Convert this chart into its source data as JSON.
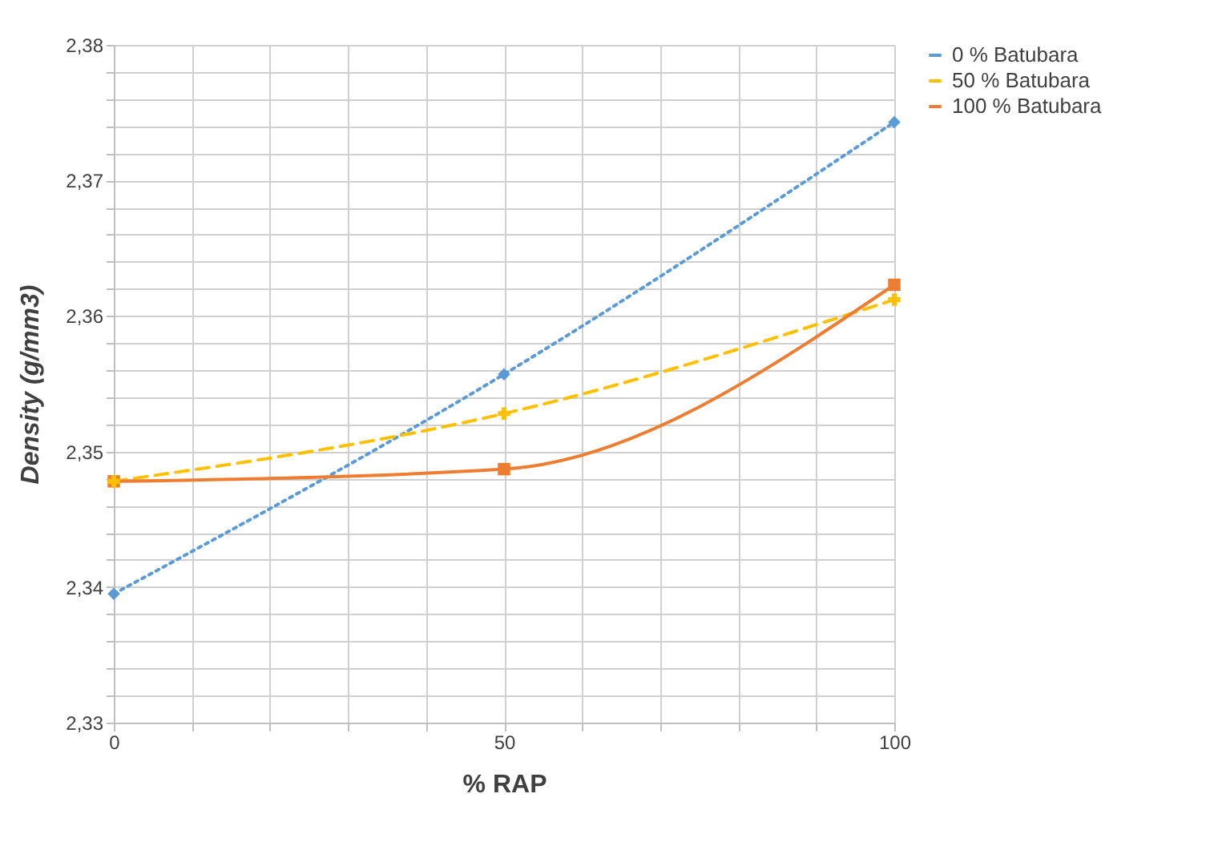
{
  "chart_data": {
    "type": "line",
    "xlabel": "% RAP",
    "ylabel": "Density (g/mm3)",
    "x": [
      0,
      50,
      100
    ],
    "series": [
      {
        "name": "0 % Batubara",
        "color": "#5b9bd5",
        "values": [
          2.3395,
          2.3557,
          2.3743
        ],
        "marker": "diamond",
        "line_style": "dotted"
      },
      {
        "name": "50 % Batubara",
        "color": "#ffc000",
        "values": [
          2.3478,
          2.3528,
          2.3612
        ],
        "marker": "cross",
        "line_style": "dashed"
      },
      {
        "name": "100 % Batubara",
        "color": "#ed7d31",
        "values": [
          2.3478,
          2.3487,
          2.3623
        ],
        "marker": "square",
        "line_style": "solid"
      }
    ],
    "xlim": [
      0,
      100
    ],
    "xticks": [
      0,
      {
        "value": 10,
        "label": null
      },
      {
        "value": 20,
        "label": null
      },
      {
        "value": 30,
        "label": null
      },
      {
        "value": 40,
        "label": null
      },
      50,
      {
        "value": 60,
        "label": null
      },
      {
        "value": 70,
        "label": null
      },
      {
        "value": 80,
        "label": null
      },
      {
        "value": 90,
        "label": null
      },
      100
    ],
    "ylim": [
      2.33,
      2.38
    ],
    "yticks": [
      {
        "value": 2.33,
        "label": "2,33"
      },
      {
        "value": 2.332,
        "label": null
      },
      {
        "value": 2.334,
        "label": null
      },
      {
        "value": 2.336,
        "label": null
      },
      {
        "value": 2.338,
        "label": null
      },
      {
        "value": 2.34,
        "label": "2,34"
      },
      {
        "value": 2.342,
        "label": null
      },
      {
        "value": 2.344,
        "label": null
      },
      {
        "value": 2.346,
        "label": null
      },
      {
        "value": 2.348,
        "label": null
      },
      {
        "value": 2.35,
        "label": "2,35"
      },
      {
        "value": 2.352,
        "label": null
      },
      {
        "value": 2.354,
        "label": null
      },
      {
        "value": 2.356,
        "label": null
      },
      {
        "value": 2.358,
        "label": null
      },
      {
        "value": 2.36,
        "label": "2,36"
      },
      {
        "value": 2.362,
        "label": null
      },
      {
        "value": 2.364,
        "label": null
      },
      {
        "value": 2.366,
        "label": null
      },
      {
        "value": 2.368,
        "label": null
      },
      {
        "value": 2.37,
        "label": "2,37"
      },
      {
        "value": 2.372,
        "label": null
      },
      {
        "value": 2.374,
        "label": null
      },
      {
        "value": 2.376,
        "label": null
      },
      {
        "value": 2.378,
        "label": null
      },
      {
        "value": 2.38,
        "label": "2,38"
      }
    ],
    "grid": true,
    "legend": "right"
  }
}
